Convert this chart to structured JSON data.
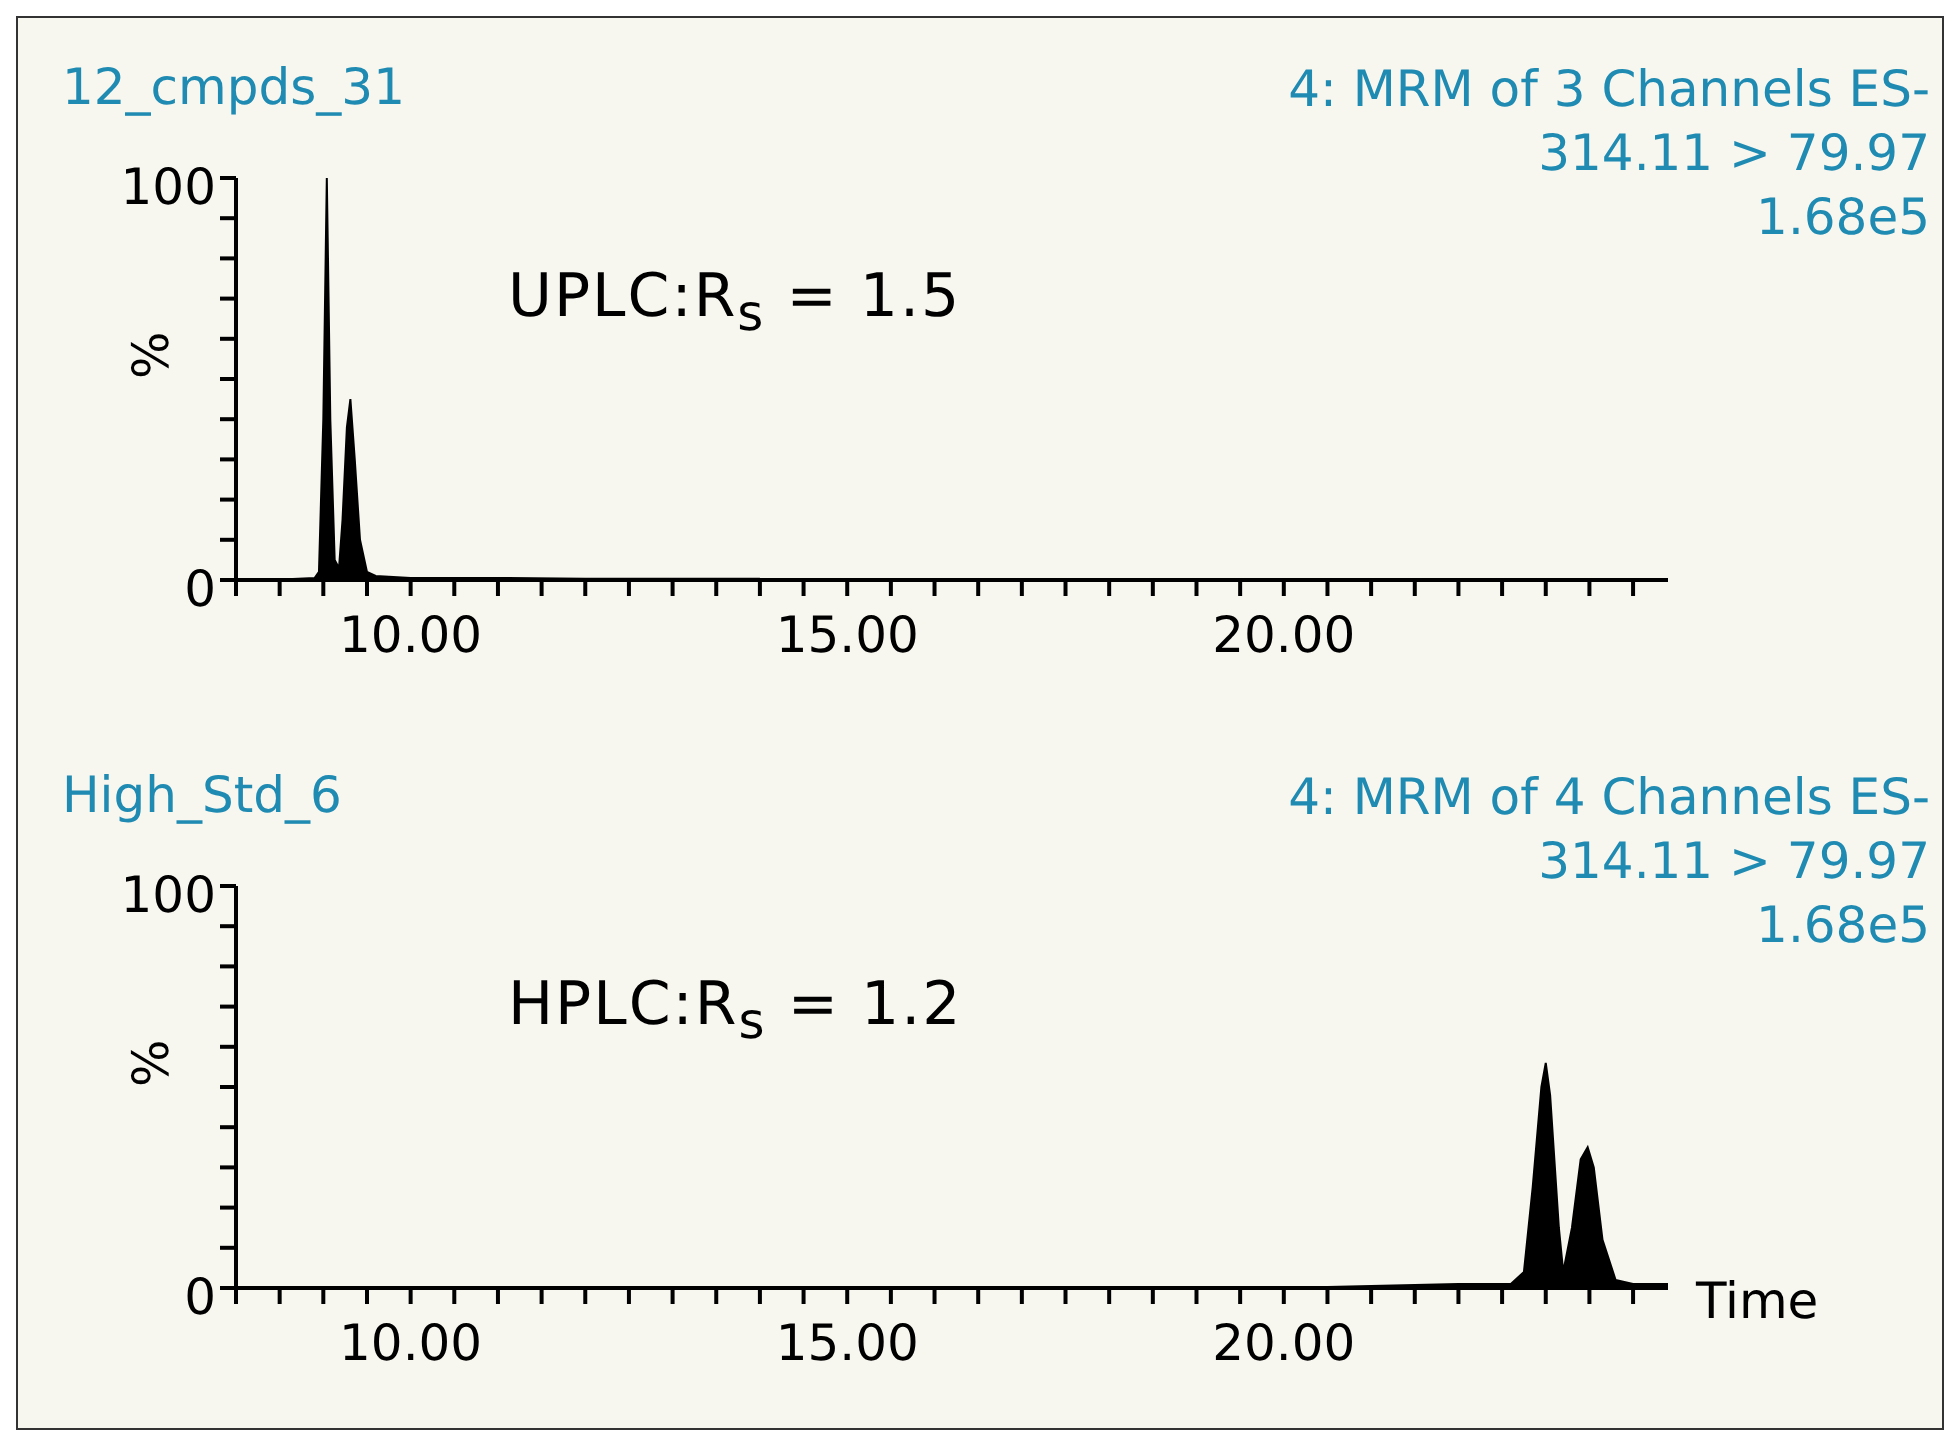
{
  "chart_data": [
    {
      "type": "area",
      "title": "12_cmpds_31",
      "ylabel": "%",
      "annotations": [
        "UPLC:R$_{s}$ = 1.5",
        "4: MRM of 3 Channels ES-",
        "314.11 > 79.97",
        "1.68e5"
      ],
      "x": [
        8.4,
        8.9,
        8.95,
        9.0,
        9.04,
        9.08,
        9.13,
        9.18,
        9.22,
        9.27,
        9.31,
        9.36,
        9.42,
        9.5,
        9.6,
        10.0,
        11,
        12,
        13,
        14.0
      ],
      "series": [
        {
          "color": "#000000",
          "values": [
            0,
            0.5,
            2,
            40,
            100,
            40,
            5,
            3,
            15,
            38,
            45,
            30,
            10,
            2,
            1,
            0.5,
            0.5,
            0.3,
            0.3,
            0.3
          ]
        }
      ],
      "xlim": [
        8,
        24.4
      ],
      "xticks": [
        {
          "value": 8,
          "label": null
        },
        {
          "value": 8.5,
          "label": null
        },
        {
          "value": 9,
          "label": null
        },
        {
          "value": 9.5,
          "label": null
        },
        {
          "value": 10,
          "label": "10.00"
        },
        {
          "value": 10.5,
          "label": null
        },
        {
          "value": 11,
          "label": null
        },
        {
          "value": 11.5,
          "label": null
        },
        {
          "value": 12,
          "label": null
        },
        {
          "value": 12.5,
          "label": null
        },
        {
          "value": 13,
          "label": null
        },
        {
          "value": 13.5,
          "label": null
        },
        {
          "value": 14,
          "label": null
        },
        {
          "value": 14.5,
          "label": null
        },
        {
          "value": 15,
          "label": "15.00"
        },
        {
          "value": 15.5,
          "label": null
        },
        {
          "value": 16,
          "label": null
        },
        {
          "value": 16.5,
          "label": null
        },
        {
          "value": 17,
          "label": null
        },
        {
          "value": 17.5,
          "label": null
        },
        {
          "value": 18,
          "label": null
        },
        {
          "value": 18.5,
          "label": null
        },
        {
          "value": 19,
          "label": null
        },
        {
          "value": 19.5,
          "label": null
        },
        {
          "value": 20,
          "label": "20.00"
        },
        {
          "value": 20.5,
          "label": null
        },
        {
          "value": 21,
          "label": null
        },
        {
          "value": 21.5,
          "label": null
        },
        {
          "value": 22,
          "label": null
        },
        {
          "value": 22.5,
          "label": null
        },
        {
          "value": 23,
          "label": null
        },
        {
          "value": 23.5,
          "label": null
        },
        {
          "value": 24,
          "label": null
        }
      ],
      "ylim": [
        0,
        100
      ],
      "yticks": [
        {
          "value": 0,
          "label": "0"
        },
        {
          "value": 10,
          "label": null
        },
        {
          "value": 20,
          "label": null
        },
        {
          "value": 30,
          "label": null
        },
        {
          "value": 40,
          "label": null
        },
        {
          "value": 50,
          "label": null
        },
        {
          "value": 60,
          "label": null
        },
        {
          "value": 70,
          "label": null
        },
        {
          "value": 80,
          "label": null
        },
        {
          "value": 90,
          "label": null
        },
        {
          "value": 100,
          "label": "100"
        }
      ]
    },
    {
      "type": "area",
      "title": "High_Std_6",
      "ylabel": "%",
      "xlabel": "Time",
      "annotations": [
        "HPLC:R$_{s}$ = 1.2",
        "4: MRM of 4 Channels ES-",
        "314.11 > 79.97",
        "1.68e5"
      ],
      "x": [
        8.4,
        20,
        22,
        22.6,
        22.75,
        22.85,
        22.95,
        23.0,
        23.05,
        23.15,
        23.2,
        23.3,
        23.4,
        23.48,
        23.55,
        23.65,
        23.8,
        24.0,
        24.4
      ],
      "series": [
        {
          "color": "#000000",
          "values": [
            0,
            0,
            1,
            1,
            4,
            25,
            50,
            56,
            48,
            15,
            4,
            15,
            32,
            35,
            30,
            12,
            2,
            1,
            1
          ]
        }
      ],
      "xlim": [
        8,
        24.4
      ],
      "xticks": [
        {
          "value": 8,
          "label": null
        },
        {
          "value": 8.5,
          "label": null
        },
        {
          "value": 9,
          "label": null
        },
        {
          "value": 9.5,
          "label": null
        },
        {
          "value": 10,
          "label": "10.00"
        },
        {
          "value": 10.5,
          "label": null
        },
        {
          "value": 11,
          "label": null
        },
        {
          "value": 11.5,
          "label": null
        },
        {
          "value": 12,
          "label": null
        },
        {
          "value": 12.5,
          "label": null
        },
        {
          "value": 13,
          "label": null
        },
        {
          "value": 13.5,
          "label": null
        },
        {
          "value": 14,
          "label": null
        },
        {
          "value": 14.5,
          "label": null
        },
        {
          "value": 15,
          "label": "15.00"
        },
        {
          "value": 15.5,
          "label": null
        },
        {
          "value": 16,
          "label": null
        },
        {
          "value": 16.5,
          "label": null
        },
        {
          "value": 17,
          "label": null
        },
        {
          "value": 17.5,
          "label": null
        },
        {
          "value": 18,
          "label": null
        },
        {
          "value": 18.5,
          "label": null
        },
        {
          "value": 19,
          "label": null
        },
        {
          "value": 19.5,
          "label": null
        },
        {
          "value": 20,
          "label": "20.00"
        },
        {
          "value": 20.5,
          "label": null
        },
        {
          "value": 21,
          "label": null
        },
        {
          "value": 21.5,
          "label": null
        },
        {
          "value": 22,
          "label": null
        },
        {
          "value": 22.5,
          "label": null
        },
        {
          "value": 23,
          "label": null
        },
        {
          "value": 23.5,
          "label": null
        },
        {
          "value": 24,
          "label": null
        }
      ],
      "ylim": [
        0,
        100
      ],
      "yticks": [
        {
          "value": 0,
          "label": "0"
        },
        {
          "value": 10,
          "label": null
        },
        {
          "value": 20,
          "label": null
        },
        {
          "value": 30,
          "label": null
        },
        {
          "value": 40,
          "label": null
        },
        {
          "value": 50,
          "label": null
        },
        {
          "value": 60,
          "label": null
        },
        {
          "value": 70,
          "label": null
        },
        {
          "value": 80,
          "label": null
        },
        {
          "value": 90,
          "label": null
        },
        {
          "value": 100,
          "label": "100"
        }
      ]
    }
  ]
}
